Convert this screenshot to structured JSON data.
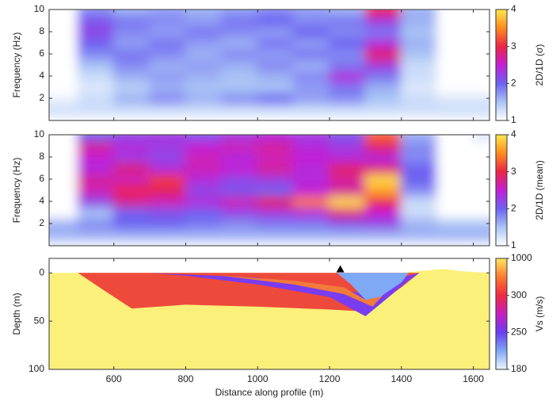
{
  "chart_data": [
    {
      "type": "heatmap",
      "ylabel": "Frequency (Hz)",
      "x": [
        450,
        550,
        650,
        750,
        850,
        950,
        1050,
        1150,
        1250,
        1350,
        1450,
        1550,
        1650
      ],
      "y": [
        1,
        2,
        3,
        4,
        5,
        6,
        7,
        8,
        9,
        10
      ],
      "z": [
        [
          1.3,
          1.3,
          1.3,
          1.3,
          1.3,
          1.3,
          1.3,
          1.3,
          1.3,
          1.3,
          1.3,
          1.3,
          1.3
        ],
        [
          1.1,
          1.3,
          1.6,
          1.8,
          1.6,
          1.8,
          2.0,
          1.7,
          1.8,
          1.5,
          1.3,
          1.2,
          1.2
        ],
        [
          1,
          1.2,
          1.4,
          1.6,
          1.5,
          1.5,
          1.5,
          1.7,
          1.9,
          1.6,
          1.2,
          1,
          1
        ],
        [
          1,
          1.3,
          1.6,
          1.7,
          1.6,
          1.5,
          1.6,
          1.8,
          2.4,
          1.9,
          1.3,
          1,
          1
        ],
        [
          1,
          1.5,
          1.8,
          1.6,
          1.7,
          1.6,
          1.8,
          1.6,
          1.9,
          2.3,
          1.3,
          1,
          1
        ],
        [
          1,
          1.8,
          1.9,
          1.8,
          1.6,
          1.8,
          1.7,
          1.9,
          1.8,
          2.9,
          1.5,
          1,
          1
        ],
        [
          1,
          2.0,
          1.7,
          1.9,
          1.7,
          1.6,
          1.9,
          1.7,
          2.0,
          2.4,
          1.6,
          1,
          1
        ],
        [
          1,
          2.2,
          1.8,
          1.7,
          1.9,
          1.8,
          1.7,
          2.0,
          1.8,
          1.9,
          1.5,
          1,
          1
        ],
        [
          1,
          2.1,
          1.9,
          1.8,
          1.7,
          1.9,
          2.0,
          1.8,
          1.9,
          2.3,
          1.6,
          1,
          1
        ],
        [
          1,
          1.8,
          1.6,
          1.7,
          1.6,
          1.7,
          1.8,
          1.7,
          1.6,
          3.0,
          1.6,
          1,
          1
        ]
      ],
      "xlim": [
        420,
        1645
      ],
      "ylim": [
        0,
        10
      ],
      "xticks": [
        600,
        800,
        1000,
        1200,
        1400,
        1600
      ],
      "yticks": [
        2,
        4,
        6,
        8,
        10
      ],
      "colorbar": {
        "label": "2D/1D (σ)",
        "lim": [
          1,
          4
        ],
        "ticks": [
          1,
          2,
          3,
          4
        ],
        "colors": [
          "#ffffff",
          "#a9c4f5",
          "#6d62f2",
          "#c41fd6",
          "#ec2445",
          "#ff8c1f",
          "#ffe94d"
        ]
      }
    },
    {
      "type": "heatmap",
      "ylabel": "Frequency (Hz)",
      "x": [
        450,
        550,
        650,
        750,
        850,
        950,
        1050,
        1150,
        1250,
        1350,
        1450,
        1550,
        1650
      ],
      "y": [
        1,
        2,
        3,
        4,
        5,
        6,
        7,
        8,
        9,
        10
      ],
      "z": [
        [
          1.6,
          1.6,
          1.6,
          1.6,
          1.6,
          1.6,
          1.6,
          1.6,
          1.6,
          1.6,
          1.6,
          1.6,
          1.6
        ],
        [
          1.6,
          1.8,
          2.0,
          2.0,
          1.9,
          1.8,
          1.9,
          1.9,
          2.1,
          2.2,
          1.6,
          1.5,
          1.5
        ],
        [
          1,
          1.5,
          2.0,
          2.1,
          2.0,
          2.2,
          2.3,
          2.4,
          2.8,
          2.5,
          1.3,
          1,
          1
        ],
        [
          1,
          2.2,
          2.7,
          2.6,
          2.4,
          2.6,
          2.9,
          3.4,
          3.9,
          3.0,
          1.3,
          1,
          1
        ],
        [
          1,
          2.6,
          3.0,
          2.9,
          2.2,
          2.1,
          2.0,
          2.5,
          2.7,
          3.6,
          1.8,
          1,
          1
        ],
        [
          1,
          2.7,
          2.6,
          3.1,
          2.4,
          2.2,
          2.3,
          2.4,
          2.7,
          3.9,
          2.0,
          1,
          1
        ],
        [
          1,
          2.4,
          2.8,
          2.4,
          2.6,
          2.5,
          2.7,
          2.4,
          2.9,
          2.8,
          2.0,
          1,
          1
        ],
        [
          1,
          2.5,
          2.3,
          2.2,
          2.6,
          2.4,
          2.6,
          2.5,
          2.4,
          2.4,
          1.8,
          1,
          1
        ],
        [
          1,
          2.7,
          2.4,
          2.3,
          2.5,
          2.6,
          2.7,
          2.4,
          2.3,
          2.9,
          1.8,
          1,
          1
        ],
        [
          1,
          2.0,
          2.2,
          2.3,
          2.1,
          2.3,
          2.4,
          2.3,
          2.1,
          3.3,
          1.6,
          1,
          1.2
        ]
      ],
      "xlim": [
        420,
        1645
      ],
      "ylim": [
        0,
        10
      ],
      "xticks": [
        600,
        800,
        1000,
        1200,
        1400,
        1600
      ],
      "yticks": [
        2,
        4,
        6,
        8,
        10
      ],
      "colorbar": {
        "label": "2D/1D (mean)",
        "lim": [
          1,
          4
        ],
        "ticks": [
          1,
          2,
          3,
          4
        ],
        "colors": [
          "#ffffff",
          "#a9c4f5",
          "#6d62f2",
          "#c41fd6",
          "#ec2445",
          "#ff8c1f",
          "#ffe94d"
        ]
      }
    },
    {
      "type": "section",
      "xlabel": "Distance along profile (m)",
      "ylabel": "Depth (m)",
      "xlim": [
        420,
        1645
      ],
      "ylim": [
        -15,
        100
      ],
      "xticks": [
        600,
        800,
        1000,
        1200,
        1400,
        1600
      ],
      "yticks": [
        0,
        50,
        100
      ],
      "layers": [
        {
          "color": "#fbf07a",
          "x": [
            420,
            500,
            1400,
            1450,
            1520,
            1560,
            1645,
            1645,
            420
          ],
          "depth": [
            0,
            0,
            0,
            -2,
            -4,
            -2,
            0,
            100,
            100
          ]
        },
        {
          "color": "#ee4a3c",
          "x": [
            500,
            700,
            1000,
            1200,
            1300,
            1380,
            1450,
            1400,
            1300,
            1200,
            1000,
            800,
            650,
            560
          ],
          "depth": [
            0,
            0,
            0,
            0,
            0,
            0,
            0,
            15,
            40,
            38,
            35,
            33,
            37,
            15
          ]
        },
        {
          "color": "#7a3cf0",
          "x": [
            700,
            1000,
            1200,
            1300,
            1400,
            1450,
            1420,
            1300,
            1200,
            1000,
            800
          ],
          "depth": [
            0,
            5,
            15,
            22,
            5,
            0,
            8,
            45,
            25,
            12,
            3
          ]
        },
        {
          "color": "#f27a3a",
          "x": [
            900,
            1100,
            1240,
            1300,
            1380,
            1320,
            1240,
            1100
          ],
          "depth": [
            3,
            8,
            15,
            28,
            10,
            35,
            22,
            12
          ]
        },
        {
          "color": "#7fa8f5",
          "x": [
            1220,
            1420,
            1400,
            1340,
            1300,
            1260
          ],
          "depth": [
            0,
            0,
            10,
            25,
            28,
            12
          ]
        }
      ],
      "marker": {
        "x": 1230,
        "depth": -3
      },
      "colorbar": {
        "label": "Vs (m/s)",
        "ticks": [
          180,
          250,
          300,
          1000
        ],
        "colors": [
          "#eef4ff",
          "#7fa8f5",
          "#6a3cf0",
          "#c81fc0",
          "#f02a40",
          "#ff7a30",
          "#ffe860"
        ]
      }
    }
  ]
}
